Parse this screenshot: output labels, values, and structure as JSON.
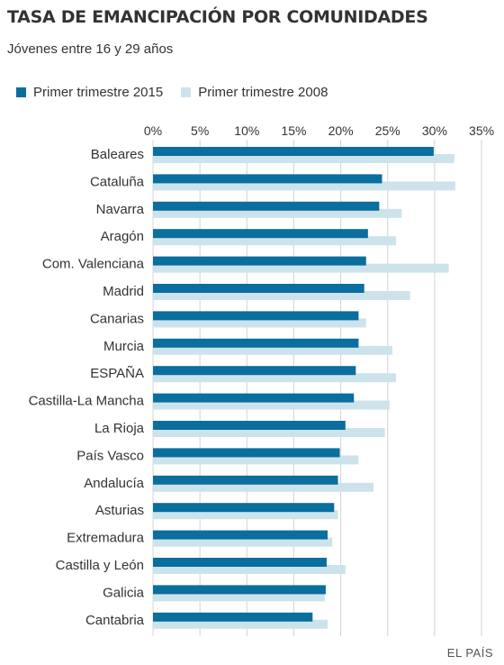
{
  "header": {
    "title": "TASA DE EMANCIPACIÓN POR COMUNIDADES",
    "subtitle": "Jóvenes entre 16 y 29 años"
  },
  "source": "EL PAÍS",
  "colors": {
    "series_2015": "#0a6e9e",
    "series_2008": "#cde3ec",
    "grid": "#d4d4d4",
    "text": "#333333"
  },
  "chart_data": {
    "type": "bar",
    "orientation": "horizontal",
    "title": "TASA DE EMANCIPACIÓN POR COMUNIDADES",
    "subtitle": "Jóvenes entre 16 y 29 años",
    "xlabel": "",
    "ylabel": "",
    "xlim": [
      0,
      35
    ],
    "x_ticks": [
      "0%",
      "5%",
      "10%",
      "15%",
      "20%",
      "25%",
      "30%",
      "35%"
    ],
    "grid": true,
    "legend_position": "top-left",
    "categories": [
      "Baleares",
      "Cataluña",
      "Navarra",
      "Aragón",
      "Com. Valenciana",
      "Madrid",
      "Canarias",
      "Murcia",
      "ESPAÑA",
      "Castilla-La Mancha",
      "La Rioja",
      "País Vasco",
      "Andalucía",
      "Asturias",
      "Extremadura",
      "Castilla y León",
      "Galicia",
      "Cantabria"
    ],
    "series": [
      {
        "name": "Primer trimestre 2015",
        "color": "#0a6e9e",
        "values": [
          29.9,
          24.4,
          24.1,
          22.9,
          22.7,
          22.5,
          21.9,
          21.9,
          21.6,
          21.4,
          20.5,
          19.9,
          19.7,
          19.3,
          18.6,
          18.5,
          18.4,
          17.0
        ]
      },
      {
        "name": "Primer trimestre 2008",
        "color": "#cde3ec",
        "values": [
          32.1,
          32.2,
          26.5,
          25.9,
          31.5,
          27.4,
          22.7,
          25.5,
          25.9,
          25.2,
          24.7,
          21.9,
          23.5,
          19.7,
          19.1,
          20.5,
          18.3,
          18.6
        ]
      }
    ]
  }
}
